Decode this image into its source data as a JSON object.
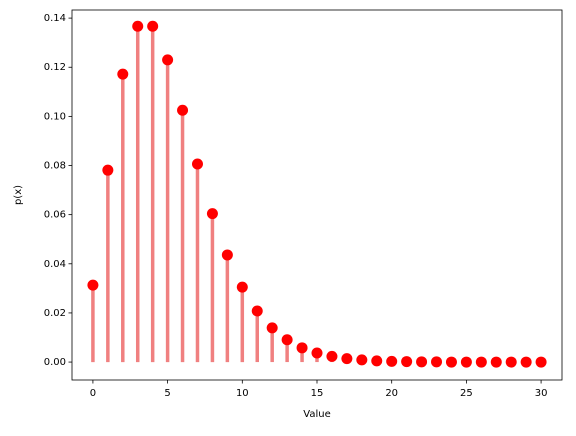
{
  "chart_data": {
    "type": "stem",
    "x_label": "Value",
    "y_label": "p(x)",
    "x": [
      0,
      1,
      2,
      3,
      4,
      5,
      6,
      7,
      8,
      9,
      10,
      11,
      12,
      13,
      14,
      15,
      16,
      17,
      18,
      19,
      20,
      21,
      22,
      23,
      24,
      25,
      26,
      27,
      28,
      29,
      30
    ],
    "values": [
      0.0313,
      0.0781,
      0.1172,
      0.1367,
      0.1367,
      0.123,
      0.1025,
      0.0806,
      0.0604,
      0.0436,
      0.0305,
      0.0208,
      0.0139,
      0.0091,
      0.0058,
      0.0037,
      0.0023,
      0.0014,
      0.0009,
      0.0005,
      0.0003,
      0.0002,
      0.0001,
      0.0001,
      0,
      0,
      0,
      0,
      0,
      0,
      0
    ],
    "stem_color": "#f08080",
    "marker_color": "#ff0000",
    "xlim": [
      -1.4,
      31.4
    ],
    "ylim": [
      -0.0073,
      0.1433
    ],
    "xticks": [
      0,
      5,
      10,
      15,
      20,
      25,
      30
    ],
    "yticks": [
      {
        "value": 0,
        "label": "0.00"
      },
      {
        "value": 0.02,
        "label": "0.02"
      },
      {
        "value": 0.04,
        "label": "0.04"
      },
      {
        "value": 0.06,
        "label": "0.06"
      },
      {
        "value": 0.08,
        "label": "0.08"
      },
      {
        "value": 0.1,
        "label": "0.10"
      },
      {
        "value": 0.12,
        "label": "0.12"
      },
      {
        "value": 0.14,
        "label": "0.14"
      }
    ]
  }
}
